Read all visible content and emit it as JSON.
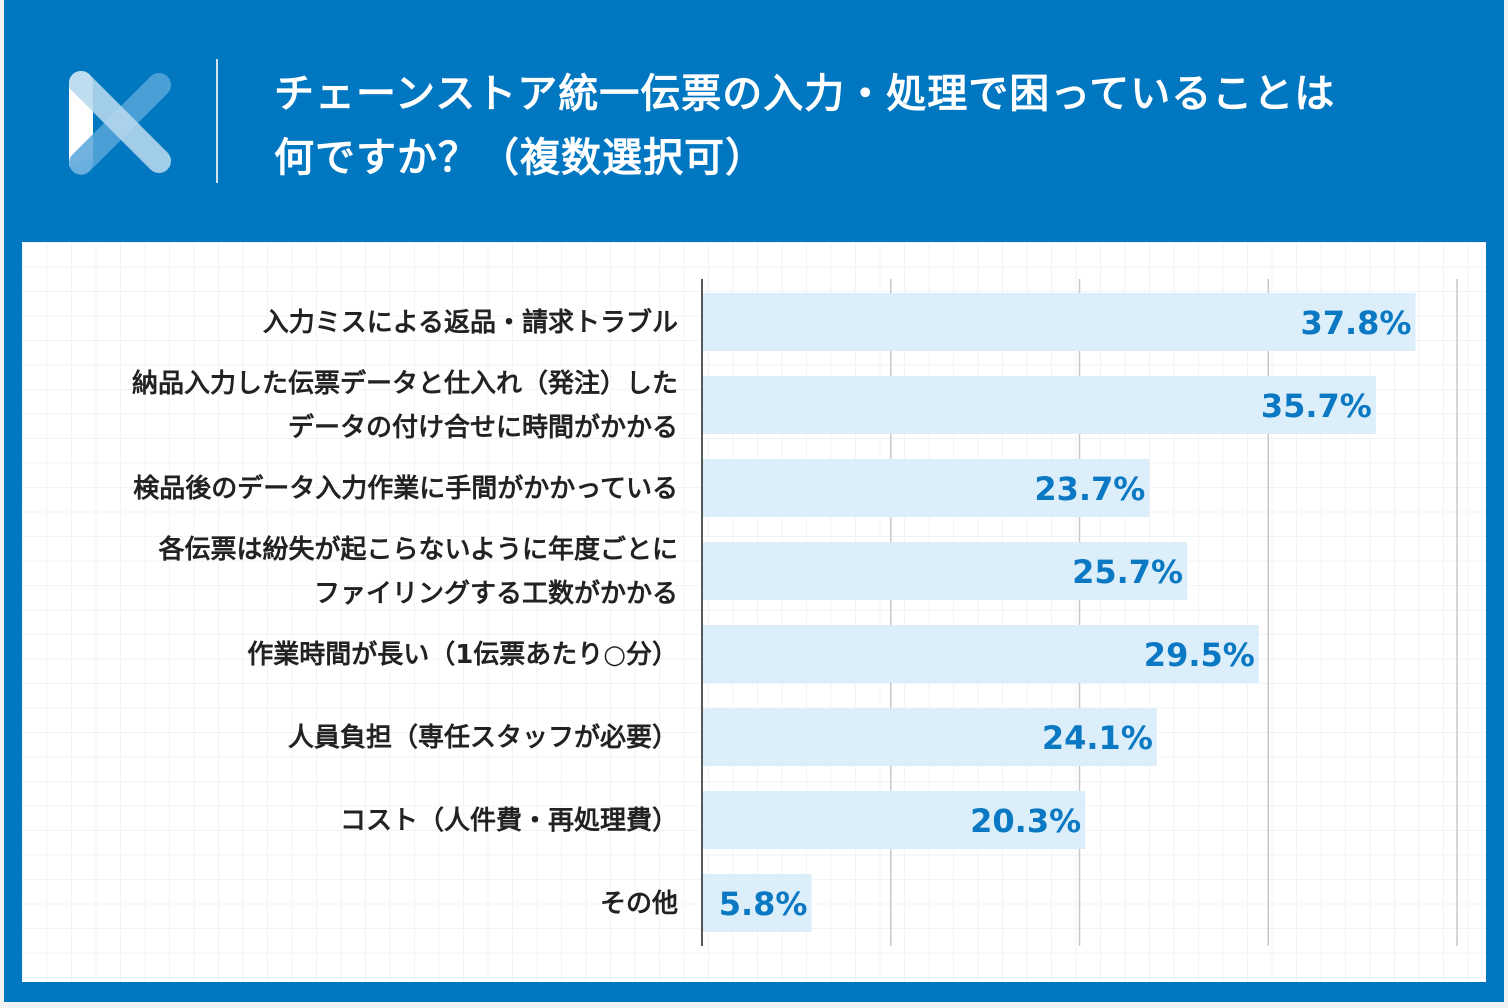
{
  "header": {
    "title_line1": "チェーンストア統一伝票の入力・処理で困っていることは",
    "title_line2": "何ですか？（複数選択可）",
    "logo": "X-shaped brand logo"
  },
  "colors": {
    "frame": "#0077c0",
    "bar": "#dbeefa",
    "value_text": "#0a78c2"
  },
  "chart_data": {
    "type": "bar",
    "orientation": "horizontal",
    "title": "チェーンストア統一伝票の入力・処理で困っていることは何ですか？（複数選択可）",
    "categories": [
      [
        "入力ミスによる返品・請求トラブル"
      ],
      [
        "納品入力した伝票データと仕入れ（発注）した",
        "データの付け合せに時間がかかる"
      ],
      [
        "検品後のデータ入力作業に手間がかかっている"
      ],
      [
        "各伝票は紛失が起こらないように年度ごとに",
        "ファイリングする工数がかかる"
      ],
      [
        "作業時間が長い（1伝票あたり○分）"
      ],
      [
        "人員負担（専任スタッフが必要）"
      ],
      [
        "コスト（人件費・再処理費）"
      ],
      [
        "その他"
      ]
    ],
    "values": [
      37.8,
      35.7,
      23.7,
      25.7,
      29.5,
      24.1,
      20.3,
      5.8
    ],
    "value_labels": [
      "37.8%",
      "35.7%",
      "23.7%",
      "25.7%",
      "29.5%",
      "24.1%",
      "20.3%",
      "5.8%"
    ],
    "xlim": [
      0,
      40
    ],
    "gridlines": [
      10,
      20,
      30,
      40
    ],
    "grid": true,
    "legend": "none"
  }
}
